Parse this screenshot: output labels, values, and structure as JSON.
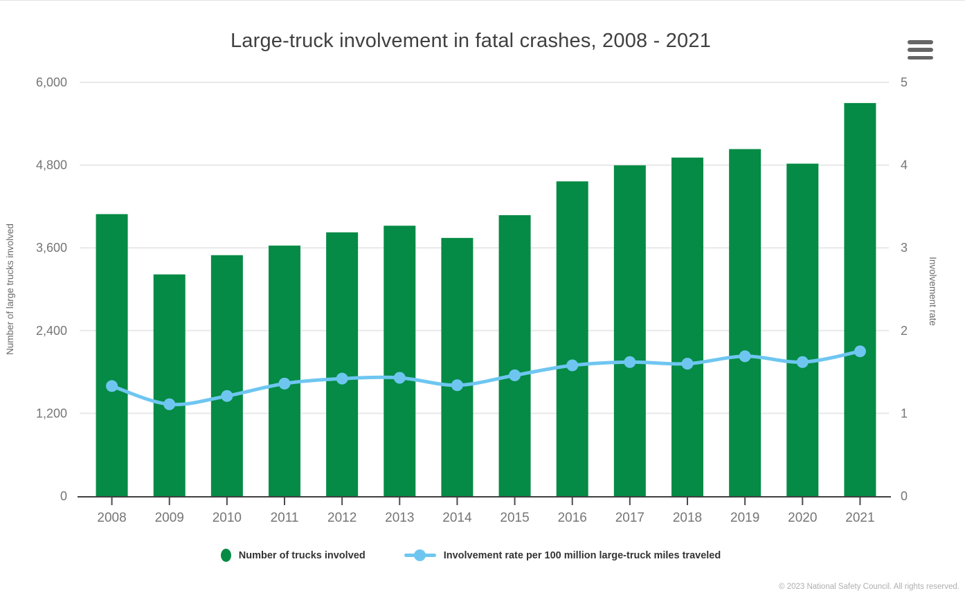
{
  "title": "Large-truck involvement in fatal crashes, 2008 - 2021",
  "menu": {
    "icon": "hamburger-icon"
  },
  "axes": {
    "left": {
      "title": "Number of large trucks involved",
      "tick_labels": [
        "0",
        "1,200",
        "2,400",
        "3,600",
        "4,800",
        "6,000"
      ],
      "max": 6000
    },
    "right": {
      "title": "Involvement rate",
      "tick_labels": [
        "0",
        "1",
        "2",
        "3",
        "4",
        "5"
      ],
      "max": 5
    }
  },
  "chart_data": {
    "type": "bar",
    "title": "Large-truck involvement in fatal crashes, 2008 - 2021",
    "categories": [
      "2008",
      "2009",
      "2010",
      "2011",
      "2012",
      "2013",
      "2014",
      "2015",
      "2016",
      "2017",
      "2018",
      "2019",
      "2020",
      "2021"
    ],
    "series": [
      {
        "name": "Number of trucks involved",
        "type": "bar",
        "axis": "left",
        "values": [
          4089,
          3215,
          3494,
          3633,
          3825,
          3921,
          3744,
          4074,
          4564,
          4797,
          4909,
          5032,
          4821,
          5700
        ]
      },
      {
        "name": "Involvement rate per 100 million large-truck miles traveled",
        "type": "line",
        "axis": "right",
        "values": [
          1.33,
          1.11,
          1.21,
          1.36,
          1.42,
          1.43,
          1.34,
          1.46,
          1.58,
          1.62,
          1.6,
          1.69,
          1.62,
          1.75
        ]
      }
    ],
    "ylabel_left": "Number of large trucks involved",
    "ylabel_right": "Involvement rate",
    "ylim_left": [
      0,
      6000
    ],
    "ylim_right": [
      0,
      5
    ],
    "grid": true,
    "legend_position": "bottom"
  },
  "legend": [
    {
      "label": "Number of trucks involved"
    },
    {
      "label": "Involvement rate per 100 million large-truck miles traveled"
    }
  ],
  "footer": {
    "copyright": "© 2023 National Safety Council. All rights reserved."
  },
  "colors": {
    "bar": "#058b45",
    "line": "#6ec6f0",
    "grid": "#e8e8e8",
    "axis_line": "#3f3f3f",
    "tick": "#4a4a4a",
    "tick_text": "#757575",
    "title_text": "#404040",
    "menu_icon": "#666666"
  }
}
